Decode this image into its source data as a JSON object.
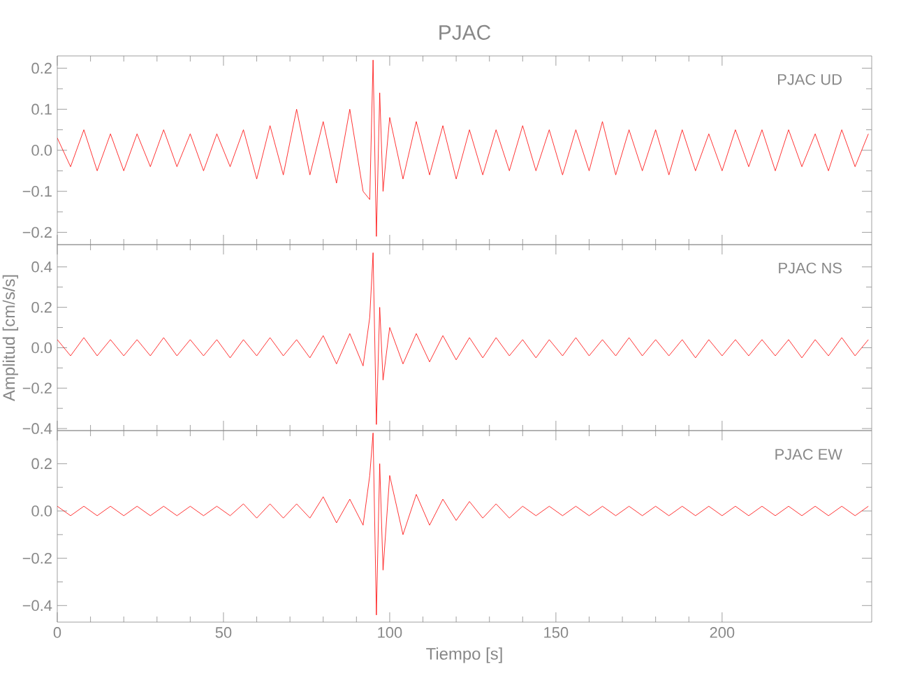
{
  "chart_data": [
    {
      "type": "line",
      "title": "PJAC",
      "annotations": [
        "PJAC   UD"
      ],
      "xlim": [
        0,
        245
      ],
      "xticks": [
        0,
        50,
        100,
        150,
        200
      ],
      "ylim": [
        -0.23,
        0.23
      ],
      "yticks": [
        {
          "value": -0.2,
          "label": "−0.2"
        },
        {
          "value": -0.1,
          "label": "−0.1"
        },
        {
          "value": 0,
          "label": "0.0"
        },
        0.1,
        0.2
      ],
      "tick_labels": "y",
      "x": [
        0,
        4,
        8,
        12,
        16,
        20,
        24,
        28,
        32,
        36,
        40,
        44,
        48,
        52,
        56,
        60,
        64,
        68,
        72,
        76,
        80,
        84,
        88,
        92,
        94,
        95,
        96,
        97,
        98,
        100,
        104,
        108,
        112,
        116,
        120,
        124,
        128,
        132,
        136,
        140,
        144,
        148,
        152,
        156,
        160,
        164,
        168,
        172,
        176,
        180,
        184,
        188,
        192,
        196,
        200,
        204,
        208,
        212,
        216,
        220,
        224,
        228,
        232,
        236,
        240,
        244
      ],
      "series": [
        {
          "color": "#ff0000",
          "values": [
            0.03,
            -0.04,
            0.05,
            -0.05,
            0.04,
            -0.05,
            0.04,
            -0.04,
            0.05,
            -0.04,
            0.04,
            -0.05,
            0.04,
            -0.04,
            0.05,
            -0.07,
            0.06,
            -0.06,
            0.1,
            -0.06,
            0.07,
            -0.08,
            0.1,
            -0.1,
            -0.12,
            0.22,
            -0.21,
            0.14,
            -0.1,
            0.08,
            -0.07,
            0.07,
            -0.06,
            0.06,
            -0.07,
            0.05,
            -0.06,
            0.05,
            -0.05,
            0.06,
            -0.05,
            0.05,
            -0.06,
            0.05,
            -0.05,
            0.07,
            -0.06,
            0.05,
            -0.05,
            0.05,
            -0.06,
            0.05,
            -0.05,
            0.04,
            -0.05,
            0.05,
            -0.04,
            0.05,
            -0.05,
            0.05,
            -0.04,
            0.04,
            -0.05,
            0.05,
            -0.04,
            0.04
          ]
        }
      ]
    },
    {
      "type": "line",
      "annotations": [
        "PJAC   NS"
      ],
      "ylabel": "Amplitud  [cm/s/s]",
      "xlim": [
        0,
        245
      ],
      "xticks": [
        0,
        50,
        100,
        150,
        200
      ],
      "ylim": [
        -0.41,
        0.51
      ],
      "yticks": [
        {
          "value": -0.4,
          "label": "−0.4"
        },
        {
          "value": -0.2,
          "label": "−0.2"
        },
        {
          "value": 0,
          "label": "0.0"
        },
        0.2,
        0.4
      ],
      "tick_labels": "y",
      "x": [
        0,
        4,
        8,
        12,
        16,
        20,
        24,
        28,
        32,
        36,
        40,
        44,
        48,
        52,
        56,
        60,
        64,
        68,
        72,
        76,
        80,
        84,
        88,
        92,
        94,
        95,
        96,
        97,
        98,
        100,
        104,
        108,
        112,
        116,
        120,
        124,
        128,
        132,
        136,
        140,
        144,
        148,
        152,
        156,
        160,
        164,
        168,
        172,
        176,
        180,
        184,
        188,
        192,
        196,
        200,
        204,
        208,
        212,
        216,
        220,
        224,
        228,
        232,
        236,
        240,
        244
      ],
      "series": [
        {
          "color": "#ff0000",
          "values": [
            0.04,
            -0.04,
            0.05,
            -0.04,
            0.04,
            -0.04,
            0.04,
            -0.04,
            0.05,
            -0.04,
            0.04,
            -0.04,
            0.04,
            -0.05,
            0.04,
            -0.04,
            0.05,
            -0.04,
            0.04,
            -0.05,
            0.06,
            -0.08,
            0.07,
            -0.09,
            0.15,
            0.47,
            -0.38,
            0.2,
            -0.16,
            0.1,
            -0.08,
            0.07,
            -0.07,
            0.06,
            -0.06,
            0.05,
            -0.05,
            0.05,
            -0.04,
            0.04,
            -0.05,
            0.04,
            -0.04,
            0.05,
            -0.04,
            0.04,
            -0.04,
            0.05,
            -0.04,
            0.04,
            -0.04,
            0.04,
            -0.05,
            0.04,
            -0.04,
            0.04,
            -0.04,
            0.04,
            -0.04,
            0.04,
            -0.05,
            0.04,
            -0.04,
            0.05,
            -0.04,
            0.04
          ]
        }
      ]
    },
    {
      "type": "line",
      "annotations": [
        "PJAC   EW"
      ],
      "xlabel": "Tiempo  [s]",
      "xlim": [
        0,
        245
      ],
      "xticks": [
        0,
        50,
        100,
        150,
        200
      ],
      "ylim": [
        -0.47,
        0.34
      ],
      "yticks": [
        {
          "value": -0.4,
          "label": "−0.4"
        },
        {
          "value": -0.2,
          "label": "−0.2"
        },
        {
          "value": 0,
          "label": "0.0"
        },
        0.2
      ],
      "x": [
        0,
        4,
        8,
        12,
        16,
        20,
        24,
        28,
        32,
        36,
        40,
        44,
        48,
        52,
        56,
        60,
        64,
        68,
        72,
        76,
        80,
        84,
        88,
        92,
        94,
        95,
        96,
        97,
        98,
        100,
        104,
        108,
        112,
        116,
        120,
        124,
        128,
        132,
        136,
        140,
        144,
        148,
        152,
        156,
        160,
        164,
        168,
        172,
        176,
        180,
        184,
        188,
        192,
        196,
        200,
        204,
        208,
        212,
        216,
        220,
        224,
        228,
        232,
        236,
        240,
        244
      ],
      "series": [
        {
          "color": "#ff0000",
          "values": [
            0.02,
            -0.02,
            0.02,
            -0.02,
            0.02,
            -0.02,
            0.02,
            -0.02,
            0.02,
            -0.02,
            0.02,
            -0.02,
            0.02,
            -0.02,
            0.03,
            -0.03,
            0.03,
            -0.03,
            0.03,
            -0.03,
            0.06,
            -0.05,
            0.05,
            -0.06,
            0.15,
            0.33,
            -0.44,
            0.2,
            -0.25,
            0.15,
            -0.1,
            0.07,
            -0.06,
            0.05,
            -0.04,
            0.04,
            -0.03,
            0.03,
            -0.03,
            0.02,
            -0.02,
            0.02,
            -0.02,
            0.02,
            -0.02,
            0.02,
            -0.02,
            0.02,
            -0.02,
            0.02,
            -0.02,
            0.02,
            -0.02,
            0.02,
            -0.02,
            0.02,
            -0.02,
            0.02,
            -0.02,
            0.02,
            -0.02,
            0.02,
            -0.02,
            0.02,
            -0.02,
            0.02
          ]
        }
      ]
    }
  ]
}
